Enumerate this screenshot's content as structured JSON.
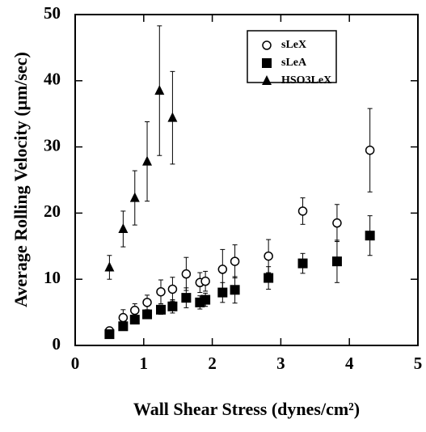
{
  "chart_data": {
    "type": "scatter",
    "x_label": "Wall Shear Stress (dynes/cm²)",
    "y_label": "Average Rolling Velocity (μm/sec)",
    "xlim": [
      0,
      5
    ],
    "ylim": [
      0,
      50
    ],
    "xticks": [
      0,
      1,
      2,
      3,
      4,
      5
    ],
    "yticks": [
      0,
      10,
      20,
      30,
      40,
      50
    ],
    "series": [
      {
        "name": "sLeX",
        "marker": "open-circle",
        "color": "#000000",
        "x": [
          0.5,
          0.7,
          0.87,
          1.05,
          1.25,
          1.42,
          1.62,
          1.82,
          1.9,
          2.15,
          2.33,
          2.82,
          3.32,
          3.82,
          4.3
        ],
        "values": [
          2.2,
          4.2,
          5.3,
          6.5,
          8.1,
          8.5,
          10.8,
          9.5,
          9.7,
          11.5,
          12.7,
          13.5,
          20.3,
          18.5,
          29.5
        ],
        "errors": [
          0.5,
          1.2,
          1,
          1.1,
          1.8,
          1.8,
          2.5,
          1.5,
          1.5,
          3,
          2.5,
          2.5,
          2,
          2.8,
          6.3
        ]
      },
      {
        "name": "sLeA",
        "marker": "filled-square",
        "color": "#000000",
        "x": [
          0.5,
          0.7,
          0.87,
          1.05,
          1.25,
          1.42,
          1.62,
          1.82,
          1.9,
          2.15,
          2.33,
          2.82,
          3.32,
          3.82,
          4.3
        ],
        "values": [
          1.7,
          2.9,
          3.9,
          4.7,
          5.4,
          5.9,
          7.2,
          6.5,
          6.9,
          8,
          8.4,
          10.2,
          12.4,
          12.7,
          16.6
        ],
        "errors": [
          0.5,
          0.5,
          0.6,
          0.6,
          0.7,
          1,
          1.5,
          1,
          1,
          1.5,
          2,
          1.7,
          1.5,
          3.2,
          3
        ]
      },
      {
        "name": "HSO3LeX",
        "marker": "filled-triangle",
        "color": "#000000",
        "x": [
          0.5,
          0.7,
          0.87,
          1.05,
          1.23,
          1.42
        ],
        "values": [
          11.8,
          17.6,
          22.3,
          27.8,
          38.5,
          34.4
        ],
        "errors": [
          1.8,
          2.7,
          4.1,
          6,
          9.8,
          7
        ]
      }
    ]
  }
}
